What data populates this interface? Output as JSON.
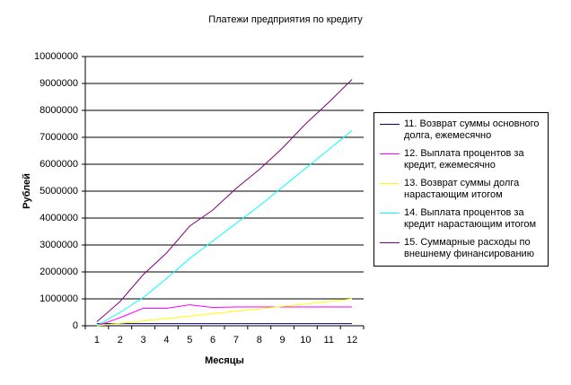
{
  "chart_data": {
    "type": "line",
    "title": "Платежи предприятия по кредиту",
    "x_label": "Месяцы",
    "y_label": "Рублей",
    "categories": [
      1,
      2,
      3,
      4,
      5,
      6,
      7,
      8,
      9,
      10,
      11,
      12
    ],
    "ylim": [
      0,
      10000000
    ],
    "yticks": [
      0,
      1000000,
      2000000,
      3000000,
      4000000,
      5000000,
      6000000,
      7000000,
      8000000,
      9000000,
      10000000
    ],
    "grid": true,
    "legend": "right",
    "series": [
      {
        "name": "11. Возврат суммы основного долга, ежемесячно",
        "color": "#000080",
        "values": [
          80000,
          80000,
          80000,
          80000,
          80000,
          80000,
          80000,
          80000,
          80000,
          80000,
          80000,
          80000
        ]
      },
      {
        "name": "12. Выплата процентов за кредит, ежемесячно",
        "color": "#ff00ff",
        "values": [
          0,
          300000,
          650000,
          650000,
          780000,
          680000,
          700000,
          700000,
          700000,
          700000,
          700000,
          700000
        ]
      },
      {
        "name": "13. Возврат суммы долга нарастающим итогом",
        "color": "#ffff00",
        "values": [
          0,
          90000,
          180000,
          270000,
          360000,
          450000,
          540000,
          630000,
          720000,
          810000,
          900000,
          1000000
        ]
      },
      {
        "name": "14. Выплата процентов за кредит нарастающим итогом",
        "color": "#00ffff",
        "values": [
          0,
          500000,
          1050000,
          1750000,
          2500000,
          3150000,
          3800000,
          4450000,
          5150000,
          5850000,
          6550000,
          7250000
        ]
      },
      {
        "name": "15. Суммарные расходы по внешнему финансированию",
        "color": "#800080",
        "values": [
          150000,
          900000,
          1900000,
          2700000,
          3700000,
          4300000,
          5100000,
          5800000,
          6600000,
          7500000,
          8300000,
          9150000
        ]
      }
    ]
  }
}
